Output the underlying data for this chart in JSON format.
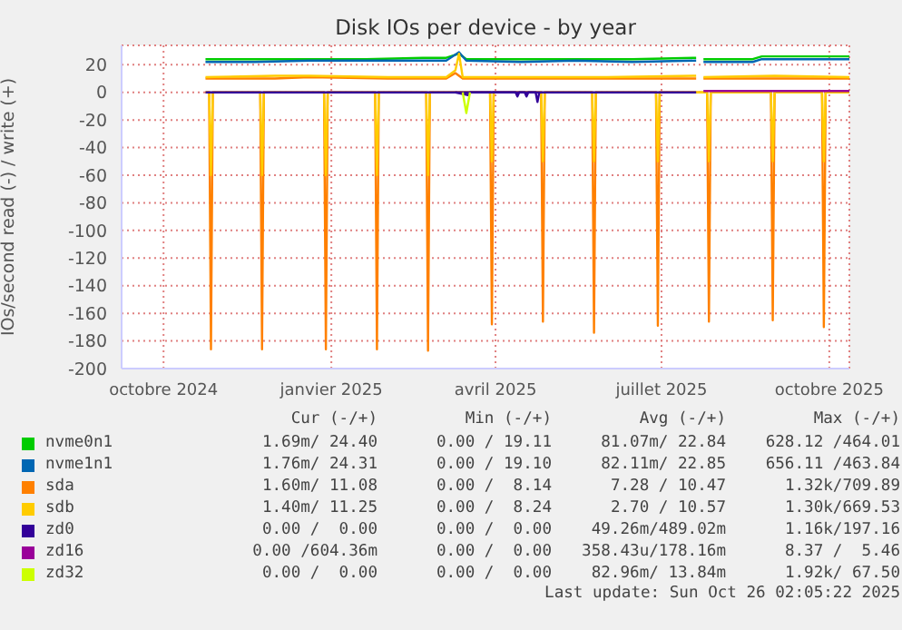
{
  "chart_data": {
    "type": "line",
    "title": "Disk IOs per device - by year",
    "ylabel": "IOs/second read (-) / write (+)",
    "xlim": [
      "2024-09-08",
      "2025-10-12"
    ],
    "xticks": [
      {
        "value": "2024-10-01",
        "label": "octobre 2024"
      },
      {
        "value": "2025-01-01",
        "label": "janvier 2025"
      },
      {
        "value": "2025-04-01",
        "label": "avril 2025"
      },
      {
        "value": "2025-07-01",
        "label": "juillet 2025"
      },
      {
        "value": "2025-10-01",
        "label": "octobre 2025"
      }
    ],
    "ylim": [
      -200,
      34
    ],
    "yticks": [
      -200,
      -180,
      -160,
      -140,
      -120,
      -100,
      -80,
      -60,
      -40,
      -20,
      0,
      20
    ],
    "grid": true,
    "legend": "bottom",
    "marker": "none",
    "line_style": "solid",
    "series": [
      {
        "name": "nvme0n1",
        "color": "#00cc00",
        "x": [
          "2024-10-24",
          "2024-11-20",
          "2024-12-20",
          "2025-01-20",
          "2025-02-20",
          "2025-03-05",
          "2025-03-12",
          "2025-03-16",
          "2025-04-15",
          "2025-05-15",
          "2025-06-15",
          "2025-07-20",
          "2025-07-21",
          "2025-07-24",
          "2025-08-20",
          "2025-08-25",
          "2025-09-20",
          "2025-10-12"
        ],
        "values": [
          24,
          24,
          24,
          24,
          25,
          25,
          28,
          24,
          24,
          24,
          24,
          25,
          null,
          24,
          24,
          26,
          26,
          26
        ]
      },
      {
        "name": "nvme1n1",
        "color": "#0066b3",
        "x": [
          "2024-10-24",
          "2024-11-20",
          "2024-12-20",
          "2025-01-20",
          "2025-02-20",
          "2025-03-05",
          "2025-03-12",
          "2025-03-16",
          "2025-04-15",
          "2025-05-15",
          "2025-06-15",
          "2025-07-20",
          "2025-07-21",
          "2025-07-24",
          "2025-08-20",
          "2025-08-25",
          "2025-09-20",
          "2025-10-12"
        ],
        "values": [
          22,
          22,
          23,
          23,
          23,
          23,
          29,
          23,
          22,
          23,
          22,
          23,
          null,
          22,
          22,
          24,
          24,
          24
        ]
      },
      {
        "name": "sda",
        "color": "#ff8000",
        "x": [
          "2024-10-24",
          "2024-12-01",
          "2024-12-20",
          "2025-02-01",
          "2025-03-05",
          "2025-03-10",
          "2025-03-14",
          "2025-04-20",
          "2025-06-01",
          "2025-07-20",
          "2025-07-21",
          "2025-07-24",
          "2025-09-01",
          "2025-10-12"
        ],
        "values": [
          10,
          10,
          11,
          10,
          10,
          14,
          10,
          10,
          10,
          10,
          null,
          10,
          10,
          10
        ]
      },
      {
        "name": "sdb",
        "color": "#ffcc00",
        "x": [
          "2024-10-24",
          "2024-12-01",
          "2024-12-20",
          "2025-02-01",
          "2025-03-05",
          "2025-03-10",
          "2025-03-12",
          "2025-03-14",
          "2025-04-20",
          "2025-06-01",
          "2025-07-20",
          "2025-07-21",
          "2025-07-24",
          "2025-09-01",
          "2025-10-12"
        ],
        "values": [
          11,
          12,
          12,
          11,
          11,
          16,
          28,
          11,
          11,
          11,
          12,
          null,
          11,
          12,
          11
        ]
      },
      {
        "name": "zd0",
        "color": "#330099",
        "x": [
          "2024-10-24",
          "2025-07-20"
        ],
        "values": [
          0,
          0
        ]
      },
      {
        "name": "zd16",
        "color": "#990099",
        "x": [
          "2025-07-24",
          "2025-10-12"
        ],
        "values": [
          1,
          1
        ]
      },
      {
        "color": "#ff8000",
        "x": [
          "2024-10-24",
          "2024-10-26",
          "2024-10-27",
          "2024-10-28",
          "2024-11-23",
          "2024-11-24",
          "2024-11-25",
          "2024-12-28",
          "2024-12-29",
          "2024-12-30",
          "2025-01-25",
          "2025-01-26",
          "2025-01-27",
          "2025-02-22",
          "2025-02-23",
          "2025-02-24",
          "2025-03-29",
          "2025-03-30",
          "2025-03-31",
          "2025-04-26",
          "2025-04-27",
          "2025-04-28",
          "2025-05-24",
          "2025-05-25",
          "2025-05-26",
          "2025-06-28",
          "2025-06-29",
          "2025-06-30",
          "2025-07-26",
          "2025-07-27",
          "2025-07-28",
          "2025-08-30",
          "2025-08-31",
          "2025-09-01",
          "2025-09-27",
          "2025-09-28",
          "2025-09-29",
          "2025-10-12"
        ],
        "values": [
          0,
          0,
          -186,
          0,
          0,
          -186,
          0,
          0,
          -186,
          0,
          0,
          -186,
          0,
          0,
          -187,
          0,
          0,
          -168,
          0,
          0,
          -166,
          0,
          0,
          -174,
          0,
          0,
          -169,
          0,
          0,
          -166,
          0,
          0,
          -165,
          0,
          0,
          -170,
          0,
          0
        ]
      },
      {
        "color": "#ffcc00",
        "x": [
          "2024-10-24",
          "2024-10-26",
          "2024-10-27",
          "2024-10-28",
          "2024-11-23",
          "2024-11-24",
          "2024-11-25",
          "2024-12-28",
          "2024-12-29",
          "2024-12-30",
          "2025-01-25",
          "2025-01-26",
          "2025-01-27",
          "2025-02-22",
          "2025-02-23",
          "2025-02-24",
          "2025-03-29",
          "2025-03-30",
          "2025-03-31",
          "2025-04-26",
          "2025-04-27",
          "2025-04-28",
          "2025-05-24",
          "2025-05-25",
          "2025-05-26",
          "2025-06-28",
          "2025-06-29",
          "2025-06-30",
          "2025-07-26",
          "2025-07-27",
          "2025-07-28",
          "2025-08-30",
          "2025-08-31",
          "2025-09-01",
          "2025-09-27",
          "2025-09-28",
          "2025-09-29",
          "2025-10-12"
        ],
        "values": [
          0,
          0,
          -60,
          0,
          0,
          -60,
          0,
          0,
          -60,
          0,
          0,
          -60,
          0,
          0,
          -60,
          0,
          0,
          -50,
          0,
          0,
          -50,
          0,
          0,
          -50,
          0,
          0,
          -50,
          0,
          0,
          -50,
          0,
          0,
          -50,
          0,
          0,
          -50,
          0,
          0
        ]
      },
      {
        "color": "#330099",
        "x": [
          "2025-03-10",
          "2025-03-17",
          "2025-03-18",
          "2025-04-12",
          "2025-04-13",
          "2025-04-14",
          "2025-04-17",
          "2025-04-18",
          "2025-04-19",
          "2025-04-23",
          "2025-04-24",
          "2025-04-25"
        ],
        "values": [
          0,
          -2,
          0,
          0,
          -3,
          0,
          0,
          -3,
          0,
          0,
          -7,
          0
        ]
      },
      {
        "name": "zd32",
        "color": "#ccff00",
        "x": [
          "2025-03-14",
          "2025-03-16",
          "2025-03-18"
        ],
        "values": [
          0,
          -15,
          0
        ]
      }
    ],
    "annotations": [
      "Cur (-/+)",
      "Min (-/+)",
      "Avg (-/+)",
      "Max (-/+)",
      "1.69m/ 24.40",
      "0.00 / 19.11",
      "81.07m/ 22.84",
      "628.12 /464.01",
      "1.76m/ 24.31",
      "0.00 / 19.10",
      "82.11m/ 22.85",
      "656.11 /463.84",
      "1.60m/ 11.08",
      "0.00 /  8.14",
      "7.28 / 10.47",
      "1.32k/709.89",
      "1.40m/ 11.25",
      "0.00 /  8.24",
      "2.70 / 10.57",
      "1.30k/669.53",
      "0.00 /  0.00",
      "0.00 /  0.00",
      "49.26m/489.02m",
      "1.16k/197.16",
      "0.00 /604.36m",
      "0.00 /  0.00",
      "358.43u/178.16m",
      "8.37 /  5.46",
      "0.00 /  0.00",
      "0.00 /  0.00",
      "82.96m/ 13.84m",
      "1.92k/ 67.50",
      "Last update: Sun Oct 26 02:05:22 2025"
    ]
  }
}
